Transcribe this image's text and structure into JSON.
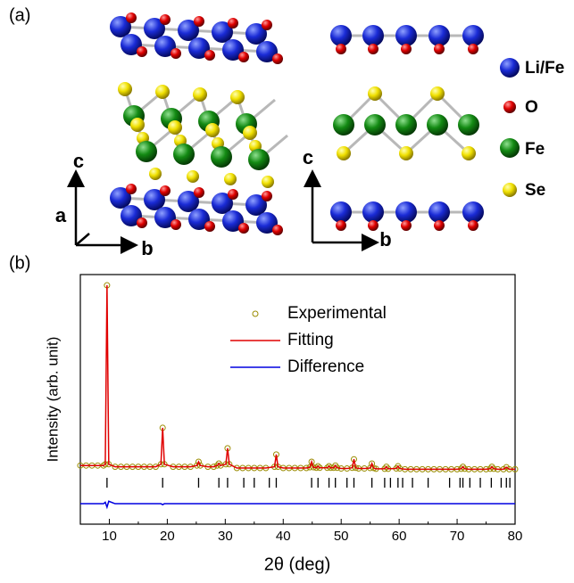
{
  "figure": {
    "panel_a": {
      "label": "(a)",
      "axes_left": {
        "c": "c",
        "a": "a",
        "b": "b"
      },
      "axes_right": {
        "c": "c",
        "b": "b"
      },
      "legend": [
        "Li/Fe",
        "O",
        "Fe",
        "Se"
      ]
    },
    "panel_b_label": "(b)"
  },
  "chart_data": {
    "type": "line",
    "xlabel": "2θ (deg)",
    "ylabel": "Intensity (arb. unit)",
    "xlim": [
      5,
      80
    ],
    "ylim": [
      0,
      100
    ],
    "xticks": [
      10,
      20,
      30,
      40,
      50,
      60,
      70,
      80
    ],
    "x": [
      5,
      6,
      7,
      8,
      9,
      9.3,
      9.6,
      9.9,
      11,
      12,
      13,
      14,
      15,
      16,
      17,
      18,
      18.9,
      19.2,
      19.5,
      21,
      22,
      23,
      24,
      25.1,
      25.4,
      25.7,
      27,
      28,
      28.6,
      28.9,
      29.2,
      30.1,
      30.4,
      30.7,
      32,
      33,
      34,
      35,
      36,
      37,
      38.5,
      38.8,
      39.1,
      40,
      41,
      42,
      43,
      44,
      44.6,
      44.9,
      45.2,
      45.7,
      46,
      46.3,
      47.6,
      47.9,
      48.2,
      48.7,
      49,
      49.3,
      50,
      51,
      51.9,
      52.2,
      52.5,
      53,
      54,
      55,
      55.3,
      55.6,
      56,
      57.5,
      57.8,
      58.1,
      59.5,
      59.8,
      60.1,
      61,
      62,
      63,
      64,
      65,
      66,
      67,
      68,
      69,
      70,
      70.7,
      71,
      71.3,
      72,
      73,
      74,
      75,
      75.7,
      76,
      76.3,
      77,
      78,
      78.5,
      79,
      80
    ],
    "series": [
      {
        "name": "Experimental",
        "color": "#9a8c00",
        "marker": "circle",
        "values": [
          23.5,
          23.5,
          23.5,
          23.5,
          23.5,
          24,
          95.7,
          24,
          23,
          23,
          23,
          23,
          23,
          23,
          23,
          23,
          24,
          38.6,
          24,
          23,
          23,
          23,
          23,
          23.5,
          25,
          23.5,
          23,
          23,
          23.5,
          24.3,
          23.5,
          24,
          30.4,
          24,
          22.5,
          22.5,
          22.5,
          22.5,
          22.5,
          22.5,
          23,
          27.9,
          23,
          22.5,
          22.5,
          22.5,
          22.5,
          22.5,
          22.8,
          25,
          22.8,
          22.6,
          23.2,
          22.6,
          22.6,
          23.2,
          22.6,
          22.6,
          23.5,
          22.6,
          22.3,
          22.3,
          22.6,
          26,
          22.6,
          22.3,
          22.3,
          22.5,
          24.3,
          22.5,
          22.2,
          22.2,
          23,
          22.2,
          22.3,
          23.2,
          22.3,
          22,
          22,
          22,
          22,
          22,
          22,
          22,
          22,
          22,
          22,
          22.2,
          23,
          22.2,
          22,
          22,
          22,
          22,
          22.2,
          23,
          22.2,
          22,
          22,
          22.8,
          22,
          22
        ]
      },
      {
        "name": "Fitting",
        "color": "#e00000",
        "values": [
          23.5,
          23.5,
          23.5,
          23.5,
          23.5,
          24,
          95.7,
          24,
          23,
          23,
          23,
          23,
          23,
          23,
          23,
          23,
          24,
          38.6,
          24,
          23,
          23,
          23,
          23,
          23.5,
          25,
          23.5,
          23,
          23,
          23.5,
          24.3,
          23.5,
          24,
          30.4,
          24,
          22.5,
          22.5,
          22.5,
          22.5,
          22.5,
          22.5,
          23,
          27.9,
          23,
          22.5,
          22.5,
          22.5,
          22.5,
          22.5,
          22.8,
          25,
          22.8,
          22.6,
          23.2,
          22.6,
          22.6,
          23.2,
          22.6,
          22.6,
          23.5,
          22.6,
          22.3,
          22.3,
          22.6,
          26,
          22.6,
          22.3,
          22.3,
          22.5,
          24.3,
          22.5,
          22.2,
          22.2,
          23,
          22.2,
          22.3,
          23.2,
          22.3,
          22,
          22,
          22,
          22,
          22,
          22,
          22,
          22,
          22,
          22,
          22.2,
          23,
          22.2,
          22,
          22,
          22,
          22,
          22.2,
          23,
          22.2,
          22,
          22,
          22.8,
          22,
          22
        ]
      },
      {
        "name": "Difference",
        "color": "#0000e0",
        "values": [
          8.2,
          8.2,
          8.2,
          8.2,
          8.2,
          8.8,
          6.8,
          9.2,
          8.2,
          8.2,
          8.2,
          8.2,
          8.2,
          8.2,
          8.2,
          8.2,
          8.2,
          7.8,
          8.2,
          8.2,
          8.2,
          8.2,
          8.2,
          8.2,
          8.2,
          8.2,
          8.2,
          8.2,
          8.2,
          8.2,
          8.2,
          8.2,
          8.2,
          8.2,
          8.2,
          8.2,
          8.2,
          8.2,
          8.2,
          8.2,
          8.2,
          8.2,
          8.2,
          8.2,
          8.2,
          8.2,
          8.2,
          8.2,
          8.2,
          8.2,
          8.2,
          8.2,
          8.2,
          8.2,
          8.2,
          8.2,
          8.2,
          8.2,
          8.2,
          8.2,
          8.2,
          8.2,
          8.2,
          8.2,
          8.2,
          8.2,
          8.2,
          8.2,
          8.2,
          8.2,
          8.2,
          8.2,
          8.2,
          8.2,
          8.2,
          8.2,
          8.2,
          8.2,
          8.2,
          8.2,
          8.2,
          8.2,
          8.2,
          8.2,
          8.2,
          8.2,
          8.2,
          8.2,
          8.2,
          8.2,
          8.2,
          8.2,
          8.2,
          8.2,
          8.2,
          8.2,
          8.2,
          8.2,
          8.2,
          8.2,
          8.2,
          8.2
        ]
      }
    ],
    "bragg_positions": [
      9.6,
      19.2,
      25.4,
      28.9,
      30.4,
      33.2,
      35,
      37.6,
      38.8,
      44.9,
      46,
      47.9,
      49,
      51,
      52.2,
      55.3,
      57.5,
      58.5,
      59.8,
      60.6,
      62.3,
      65,
      68.7,
      70.5,
      71,
      72.2,
      74,
      75.9,
      77.6,
      78.5,
      79.1
    ]
  }
}
